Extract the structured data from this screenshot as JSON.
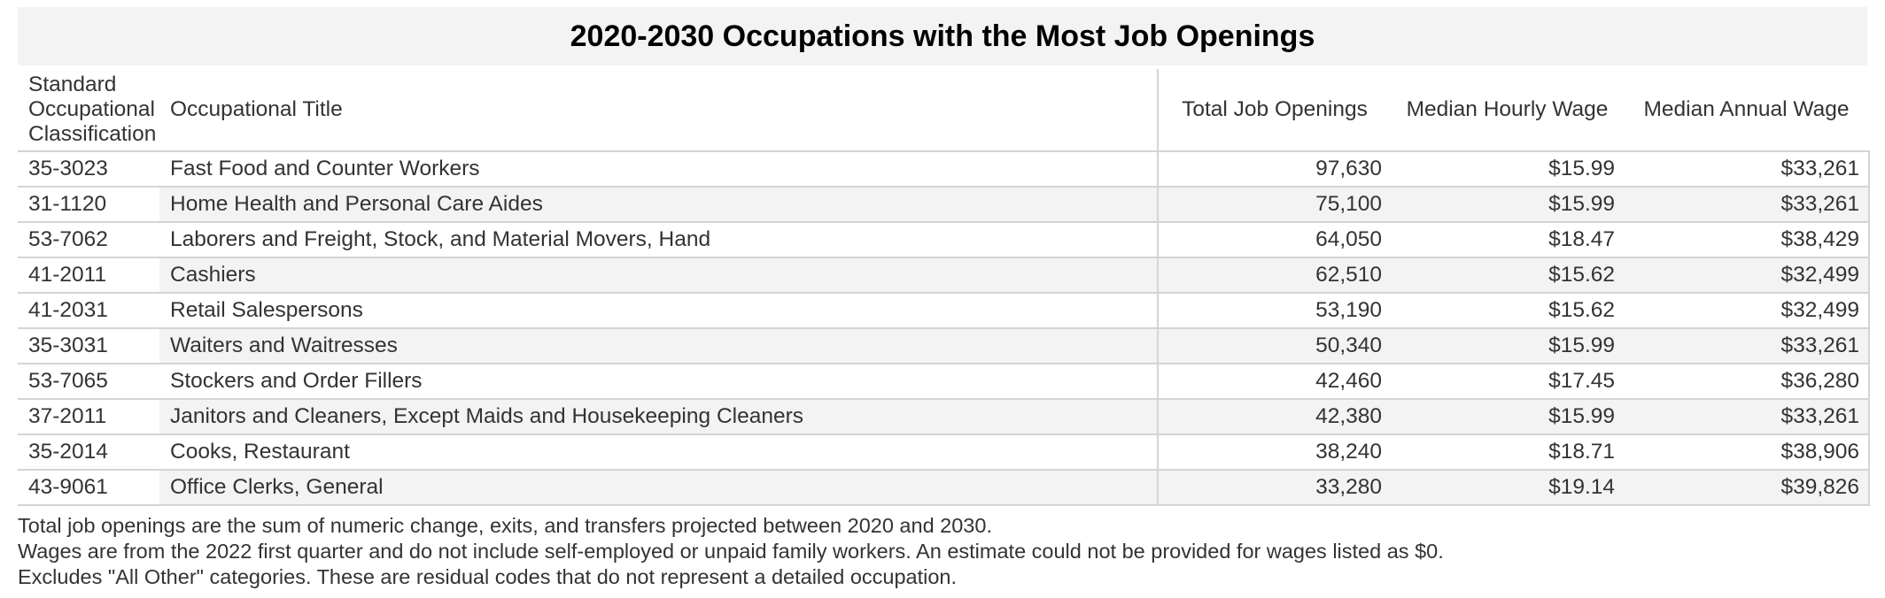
{
  "title": "2020-2030 Occupations with the Most Job Openings",
  "table": {
    "headers": {
      "soc_line1": "Standard",
      "soc_line2": "Occupational",
      "soc_line3": "Classification",
      "title": "Occupational Title",
      "openings": "Total Job Openings",
      "hourly": "Median Hourly Wage",
      "annual": "Median Annual Wage"
    },
    "rows": [
      {
        "soc": "35-3023",
        "title": "Fast Food and Counter Workers",
        "openings": "97,630",
        "hourly": "$15.99",
        "annual": "$33,261"
      },
      {
        "soc": "31-1120",
        "title": "Home Health and Personal Care Aides",
        "openings": "75,100",
        "hourly": "$15.99",
        "annual": "$33,261"
      },
      {
        "soc": "53-7062",
        "title": "Laborers and Freight, Stock, and Material Movers, Hand",
        "openings": "64,050",
        "hourly": "$18.47",
        "annual": "$38,429"
      },
      {
        "soc": "41-2011",
        "title": "Cashiers",
        "openings": "62,510",
        "hourly": "$15.62",
        "annual": "$32,499"
      },
      {
        "soc": "41-2031",
        "title": "Retail Salespersons",
        "openings": "53,190",
        "hourly": "$15.62",
        "annual": "$32,499"
      },
      {
        "soc": "35-3031",
        "title": "Waiters and Waitresses",
        "openings": "50,340",
        "hourly": "$15.99",
        "annual": "$33,261"
      },
      {
        "soc": "53-7065",
        "title": "Stockers and Order Fillers",
        "openings": "42,460",
        "hourly": "$17.45",
        "annual": "$36,280"
      },
      {
        "soc": "37-2011",
        "title": "Janitors and Cleaners, Except Maids and Housekeeping Cleaners",
        "openings": "42,380",
        "hourly": "$15.99",
        "annual": "$33,261"
      },
      {
        "soc": "35-2014",
        "title": "Cooks, Restaurant",
        "openings": "38,240",
        "hourly": "$18.71",
        "annual": "$38,906"
      },
      {
        "soc": "43-9061",
        "title": "Office Clerks, General",
        "openings": "33,280",
        "hourly": "$19.14",
        "annual": "$39,826"
      }
    ]
  },
  "notes": [
    "Total job openings are the sum of numeric change, exits, and transfers projected between 2020 and 2030.",
    "Wages are from the 2022 first quarter and do not include self-employed or unpaid family workers. An estimate could not be provided for wages listed as $0.",
    "Excludes \"All Other\" categories. These are residual codes that do not represent a detailed occupation."
  ]
}
